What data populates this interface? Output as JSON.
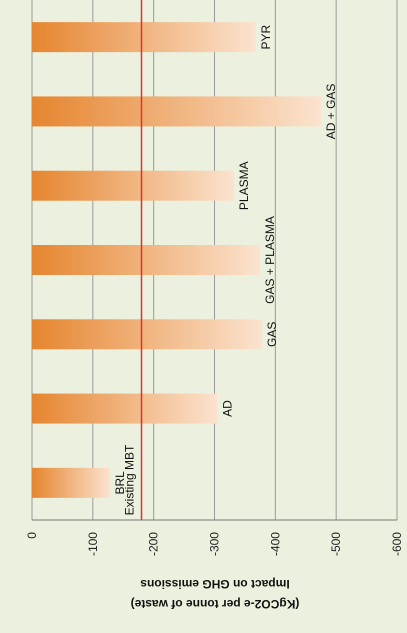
{
  "chart_data": {
    "type": "bar",
    "orientation": "horizontal",
    "categories": [
      "BRL",
      "AD",
      "GAS",
      "GAS + PLASMA",
      "PLASMA",
      "AD + GAS",
      "PYR"
    ],
    "values": [
      -128,
      -305,
      -378,
      -375,
      -332,
      -475,
      -368
    ],
    "title": "",
    "xlabel": "Impact on GHG emissions\n(KgCO2-e per tonne of waste)",
    "xlabel_lines": [
      "Impact on GHG emissions",
      "(KgCO2-e per tonne of waste)"
    ],
    "ylabel": "",
    "xlim": [
      0,
      -600
    ],
    "ticks": [
      0,
      -100,
      -200,
      -300,
      -400,
      -500,
      -600
    ],
    "tick_labels": [
      "0",
      "-100",
      "-200",
      "-300",
      "-400",
      "-500",
      "-600"
    ],
    "grid": true,
    "reference_line": {
      "label": "Existing MBT",
      "value": -180,
      "color": "#e3302a"
    },
    "colors": {
      "bar_start": "#e6852f",
      "bar_end": "#fbe3cf",
      "background": "#ebf1de",
      "grid": "#9a9a9a"
    }
  }
}
